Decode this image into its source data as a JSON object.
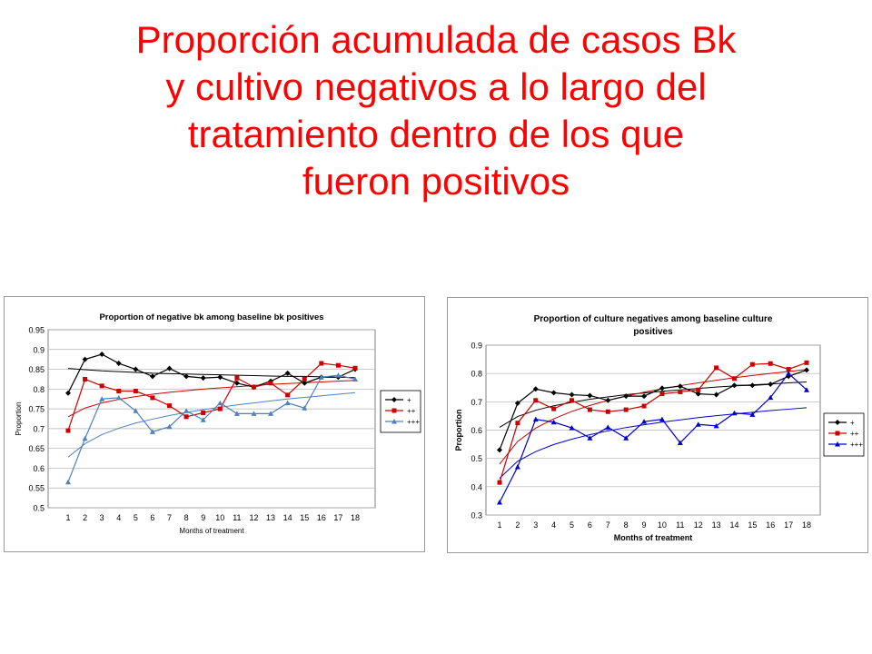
{
  "slide": {
    "title_lines": [
      "Proporción acumulada de casos Bk",
      "y cultivo negativos a lo largo del",
      "tratamiento dentro de los que",
      "fueron positivos"
    ]
  },
  "chart_data": [
    {
      "type": "line",
      "title": "Proportion of negative bk among baseline bk positives",
      "title_lines": [
        "Proportion of negative bk among baseline bk positives"
      ],
      "xlabel": "Months of treatment",
      "ylabel": "Proportion",
      "x": [
        1,
        2,
        3,
        4,
        5,
        6,
        7,
        8,
        9,
        10,
        11,
        12,
        13,
        14,
        15,
        16,
        17,
        18
      ],
      "xlim": [
        1,
        18
      ],
      "ylim": [
        0.5,
        0.95
      ],
      "yticks": [
        0.5,
        0.55,
        0.6,
        0.65,
        0.7,
        0.75,
        0.8,
        0.85,
        0.9,
        0.95
      ],
      "ytick_labels": [
        "0.5",
        "0.55",
        "0.6",
        "0.65",
        "0.7",
        "0.75",
        "0.8",
        "0.85",
        "0.9",
        "0.95"
      ],
      "grid": true,
      "legend_position": "right",
      "series": [
        {
          "name": "+",
          "color": "#000000",
          "marker": "diamond",
          "values": [
            0.79,
            0.875,
            0.888,
            0.865,
            0.85,
            0.832,
            0.852,
            0.832,
            0.828,
            0.83,
            0.815,
            0.805,
            0.82,
            0.84,
            0.815,
            0.83,
            0.83,
            0.85
          ],
          "trend": [
            0.852,
            0.849,
            0.846,
            0.844,
            0.842,
            0.84,
            0.839,
            0.838,
            0.837,
            0.836,
            0.835,
            0.834,
            0.833,
            0.832,
            0.832,
            0.831,
            0.83,
            0.829
          ]
        },
        {
          "name": "++",
          "color": "#cc0000",
          "marker": "square",
          "values": [
            0.695,
            0.825,
            0.808,
            0.795,
            0.795,
            0.778,
            0.758,
            0.73,
            0.74,
            0.75,
            0.828,
            0.805,
            0.815,
            0.785,
            0.825,
            0.865,
            0.86,
            0.853
          ],
          "trend": [
            0.73,
            0.752,
            0.765,
            0.774,
            0.781,
            0.787,
            0.792,
            0.796,
            0.8,
            0.803,
            0.806,
            0.809,
            0.812,
            0.814,
            0.816,
            0.818,
            0.82,
            0.822
          ]
        },
        {
          "name": "+++",
          "color": "#4f81bd",
          "marker": "triangle",
          "values": [
            0.565,
            0.675,
            0.775,
            0.778,
            0.745,
            0.692,
            0.705,
            0.745,
            0.722,
            0.765,
            0.738,
            0.738,
            0.738,
            0.765,
            0.752,
            0.83,
            0.835,
            0.825
          ],
          "trend": [
            0.628,
            0.662,
            0.685,
            0.701,
            0.714,
            0.724,
            0.733,
            0.741,
            0.748,
            0.754,
            0.76,
            0.765,
            0.77,
            0.775,
            0.779,
            0.783,
            0.787,
            0.791
          ]
        }
      ]
    },
    {
      "type": "line",
      "title": "Proportion of culture negatives among baseline culture positives",
      "title_lines": [
        "Proportion of culture negatives among baseline culture",
        "positives"
      ],
      "xlabel": "Months of treatment",
      "ylabel": "Proportion",
      "x": [
        1,
        2,
        3,
        4,
        5,
        6,
        7,
        8,
        9,
        10,
        11,
        12,
        13,
        14,
        15,
        16,
        17,
        18
      ],
      "xlim": [
        1,
        18
      ],
      "ylim": [
        0.3,
        0.9
      ],
      "yticks": [
        0.3,
        0.4,
        0.5,
        0.6,
        0.7,
        0.8,
        0.9
      ],
      "ytick_labels": [
        "0.3",
        "0.4",
        "0.5",
        "0.6",
        "0.7",
        "0.8",
        "0.9"
      ],
      "grid": true,
      "legend_position": "right",
      "series": [
        {
          "name": "+",
          "color": "#000000",
          "marker": "diamond",
          "values": [
            0.53,
            0.695,
            0.745,
            0.732,
            0.725,
            0.722,
            0.705,
            0.72,
            0.72,
            0.748,
            0.755,
            0.728,
            0.725,
            0.758,
            0.758,
            0.762,
            0.79,
            0.812
          ],
          "trend": [
            0.61,
            0.648,
            0.67,
            0.686,
            0.698,
            0.709,
            0.717,
            0.725,
            0.731,
            0.737,
            0.742,
            0.747,
            0.752,
            0.756,
            0.76,
            0.763,
            0.767,
            0.77
          ]
        },
        {
          "name": "++",
          "color": "#cc0000",
          "marker": "square",
          "values": [
            0.415,
            0.625,
            0.705,
            0.675,
            0.705,
            0.672,
            0.665,
            0.672,
            0.685,
            0.728,
            0.735,
            0.742,
            0.82,
            0.782,
            0.832,
            0.835,
            0.815,
            0.838
          ],
          "trend": [
            0.48,
            0.56,
            0.607,
            0.64,
            0.666,
            0.687,
            0.705,
            0.72,
            0.734,
            0.746,
            0.757,
            0.767,
            0.776,
            0.785,
            0.793,
            0.8,
            0.807,
            0.814
          ]
        },
        {
          "name": "+++",
          "color": "#0000cc",
          "marker": "triangle",
          "values": [
            0.345,
            0.47,
            0.638,
            0.628,
            0.608,
            0.572,
            0.61,
            0.572,
            0.63,
            0.638,
            0.555,
            0.62,
            0.615,
            0.66,
            0.655,
            0.715,
            0.8,
            0.742
          ],
          "trend": [
            0.43,
            0.49,
            0.524,
            0.549,
            0.568,
            0.584,
            0.597,
            0.609,
            0.619,
            0.628,
            0.636,
            0.644,
            0.651,
            0.657,
            0.663,
            0.669,
            0.674,
            0.679
          ]
        }
      ]
    }
  ]
}
